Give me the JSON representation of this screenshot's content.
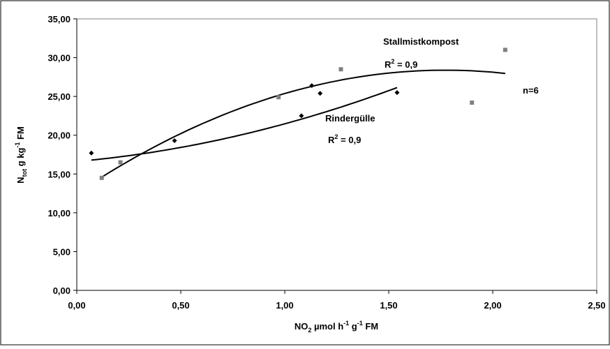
{
  "chart_data": {
    "type": "scatter",
    "title": "",
    "xlabel": {
      "main": "NO",
      "sub": "2",
      "rest": " µmol h",
      "sup1": "-1",
      "mid": " g",
      "sup2": "-1",
      "end": " FM"
    },
    "ylabel": {
      "main": "N",
      "sub": "tot",
      "rest": " g kg",
      "sup": "-1",
      "end": " FM"
    },
    "xlim": [
      0,
      2.5
    ],
    "ylim": [
      0,
      35
    ],
    "x_ticks": [
      "0,00",
      "0,50",
      "1,00",
      "1,50",
      "2,00",
      "2,50"
    ],
    "x_tick_values": [
      0,
      0.5,
      1.0,
      1.5,
      2.0,
      2.5
    ],
    "y_ticks": [
      "0,00",
      "5,00",
      "10,00",
      "15,00",
      "20,00",
      "25,00",
      "30,00",
      "35,00"
    ],
    "y_tick_values": [
      0,
      5,
      10,
      15,
      20,
      25,
      30,
      35
    ],
    "grid": false,
    "series": [
      {
        "name": "Rindergülle",
        "marker": "diamond",
        "color": "#000000",
        "x": [
          0.07,
          0.47,
          1.08,
          1.13,
          1.17,
          1.54
        ],
        "y": [
          17.7,
          19.3,
          22.5,
          26.4,
          25.4,
          25.5
        ],
        "trend": {
          "r2_label": "R",
          "r2_sup": "2",
          "r2_value": " = 0,9",
          "coef": [
            16.61,
            2.4,
            2.46
          ],
          "x_range": [
            0.07,
            1.54
          ]
        }
      },
      {
        "name": "Stallmistkompost",
        "marker": "square",
        "color": "#808080",
        "x": [
          0.12,
          0.21,
          0.97,
          1.27,
          1.9,
          2.06
        ],
        "y": [
          14.5,
          16.5,
          24.9,
          28.5,
          24.2,
          31.0
        ],
        "trend": {
          "r2_label": "R",
          "r2_sup": "2",
          "r2_value": " = 0,9",
          "coef": [
            12.52,
            17.9,
            -5.05
          ],
          "x_range": [
            0.12,
            2.06
          ]
        }
      }
    ],
    "annotations": {
      "n_label": "n=6"
    }
  }
}
